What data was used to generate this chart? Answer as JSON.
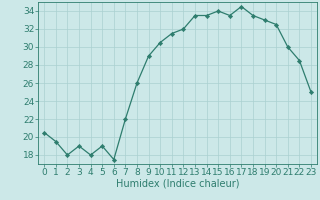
{
  "x": [
    0,
    1,
    2,
    3,
    4,
    5,
    6,
    7,
    8,
    9,
    10,
    11,
    12,
    13,
    14,
    15,
    16,
    17,
    18,
    19,
    20,
    21,
    22,
    23
  ],
  "y": [
    20.5,
    19.5,
    18.0,
    19.0,
    18.0,
    19.0,
    17.5,
    22.0,
    26.0,
    29.0,
    30.5,
    31.5,
    32.0,
    33.5,
    33.5,
    34.0,
    33.5,
    34.5,
    33.5,
    33.0,
    32.5,
    30.0,
    28.5,
    25.0
  ],
  "xlabel": "Humidex (Indice chaleur)",
  "ylabel": "",
  "ylim": [
    17,
    35
  ],
  "xlim": [
    -0.5,
    23.5
  ],
  "yticks": [
    18,
    20,
    22,
    24,
    26,
    28,
    30,
    32,
    34
  ],
  "xticks": [
    0,
    1,
    2,
    3,
    4,
    5,
    6,
    7,
    8,
    9,
    10,
    11,
    12,
    13,
    14,
    15,
    16,
    17,
    18,
    19,
    20,
    21,
    22,
    23
  ],
  "line_color": "#2e7d6e",
  "marker_color": "#2e7d6e",
  "bg_color": "#cce8e8",
  "grid_color": "#aad0d0",
  "label_fontsize": 7,
  "tick_fontsize": 6.5
}
